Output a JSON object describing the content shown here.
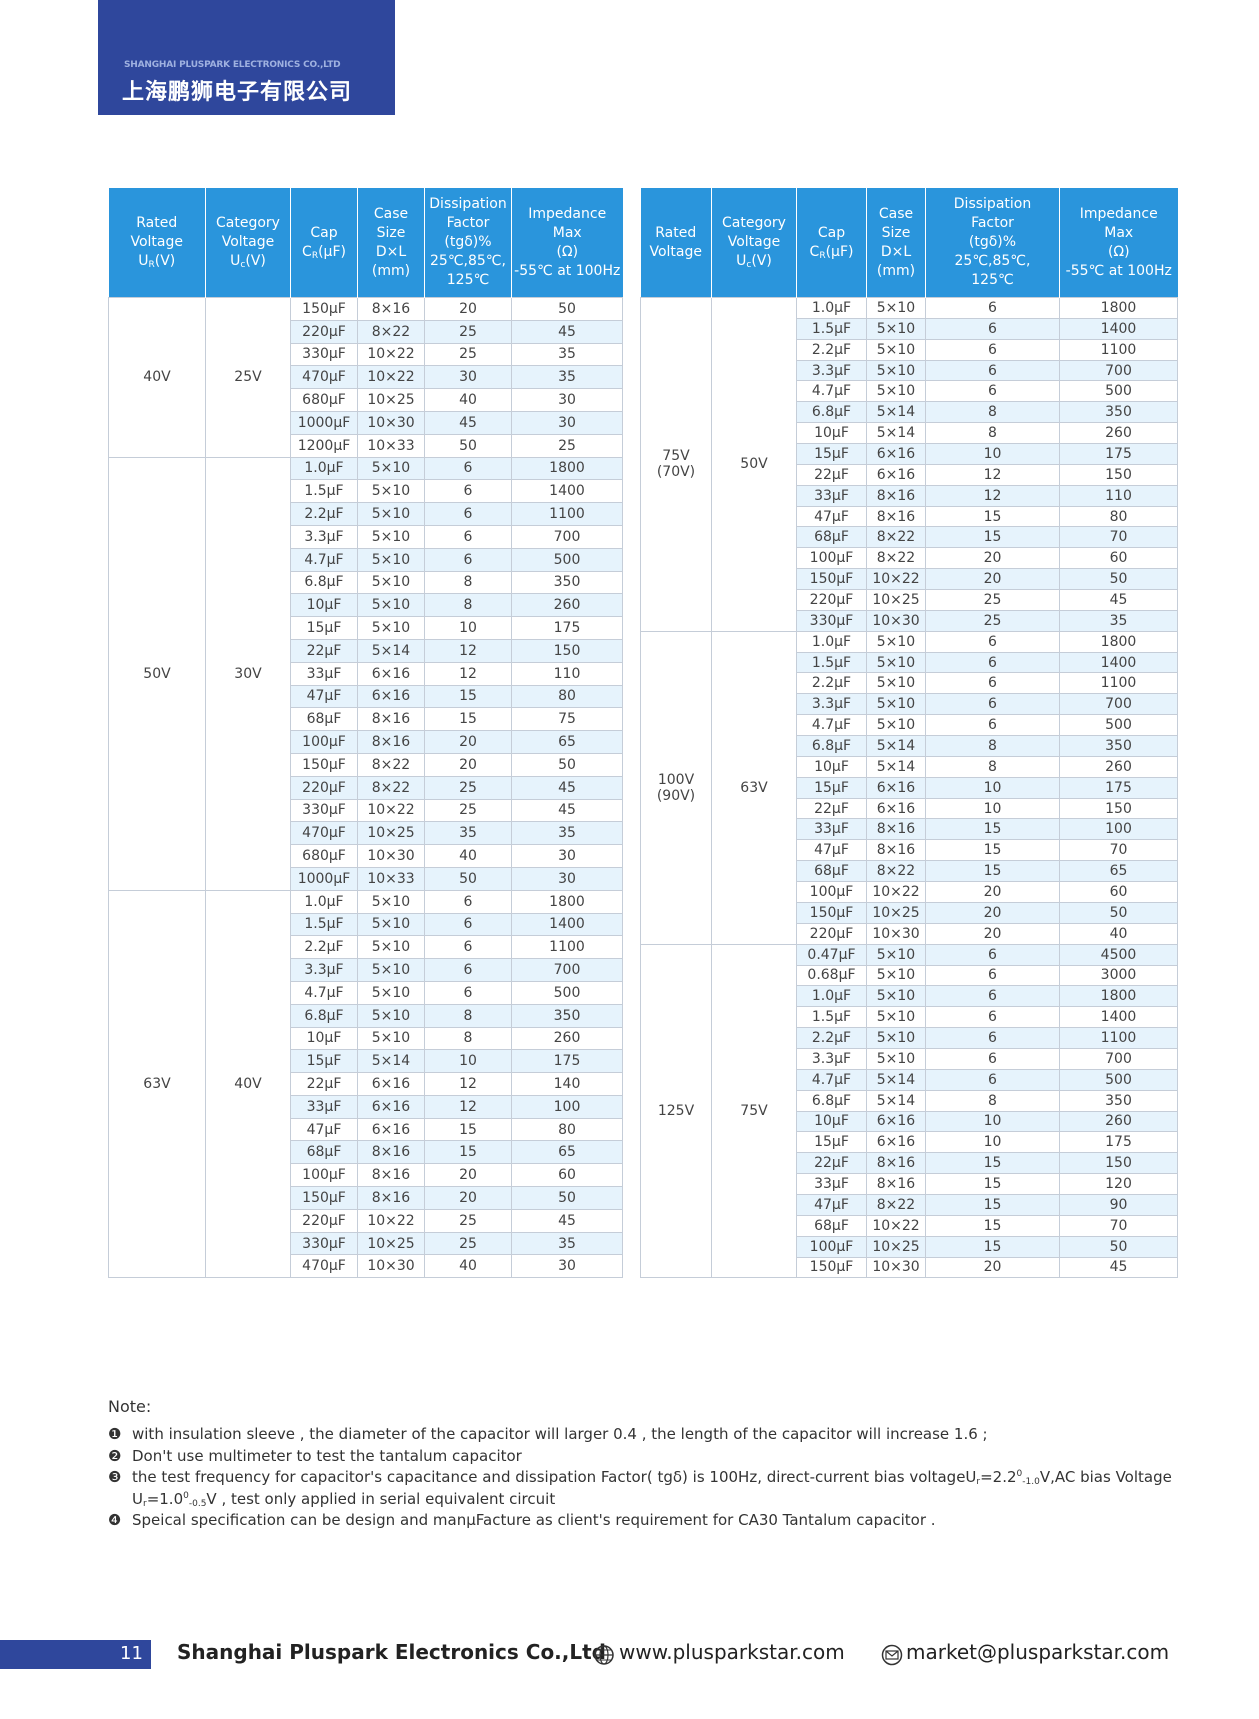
{
  "header": {
    "company_en": "SHANGHAI PLUSPARK ELECTRONICS CO.,LTD",
    "company_cn": "上海鹏狮电子有限公司"
  },
  "left_table": {
    "headers": [
      {
        "lines": [
          "Rated",
          "Voltage"
        ],
        "sym": "U",
        "sub": "R",
        "unit": "(V)"
      },
      {
        "lines": [
          "Category",
          "Voltage"
        ],
        "sym": "U",
        "sub": "c",
        "unit": "(V)"
      },
      {
        "lines": [
          "Cap"
        ],
        "sym": "C",
        "sub": "R",
        "unit": "(μF)"
      },
      {
        "lines": [
          "Case",
          "Size",
          "D×L",
          "(mm)"
        ]
      },
      {
        "lines": [
          "Dissipation",
          "Factor",
          "(tgδ)%",
          "25℃,85℃,",
          "125℃"
        ]
      },
      {
        "lines": [
          "Impedance",
          "Max",
          "(Ω)",
          "-55℃ at 100Hz"
        ]
      }
    ],
    "groups": [
      {
        "rated": [
          "40V"
        ],
        "category": "25V",
        "rows": [
          [
            "150μF",
            "8×16",
            20,
            50
          ],
          [
            "220μF",
            "8×22",
            25,
            45
          ],
          [
            "330μF",
            "10×22",
            25,
            35
          ],
          [
            "470μF",
            "10×22",
            30,
            35
          ],
          [
            "680μF",
            "10×25",
            40,
            30
          ],
          [
            "1000μF",
            "10×30",
            45,
            30
          ],
          [
            "1200μF",
            "10×33",
            50,
            25
          ]
        ]
      },
      {
        "rated": [
          "50V"
        ],
        "category": "30V",
        "rows": [
          [
            "1.0μF",
            "5×10",
            6,
            1800
          ],
          [
            "1.5μF",
            "5×10",
            6,
            1400
          ],
          [
            "2.2μF",
            "5×10",
            6,
            1100
          ],
          [
            "3.3μF",
            "5×10",
            6,
            700
          ],
          [
            "4.7μF",
            "5×10",
            6,
            500
          ],
          [
            "6.8μF",
            "5×10",
            8,
            350
          ],
          [
            "10μF",
            "5×10",
            8,
            260
          ],
          [
            "15μF",
            "5×10",
            10,
            175
          ],
          [
            "22μF",
            "5×14",
            12,
            150
          ],
          [
            "33μF",
            "6×16",
            12,
            110
          ],
          [
            "47μF",
            "6×16",
            15,
            80
          ],
          [
            "68μF",
            "8×16",
            15,
            75
          ],
          [
            "100μF",
            "8×16",
            20,
            65
          ],
          [
            "150μF",
            "8×22",
            20,
            50
          ],
          [
            "220μF",
            "8×22",
            25,
            45
          ],
          [
            "330μF",
            "10×22",
            25,
            45
          ],
          [
            "470μF",
            "10×25",
            35,
            35
          ],
          [
            "680μF",
            "10×30",
            40,
            30
          ],
          [
            "1000μF",
            "10×33",
            50,
            30
          ]
        ]
      },
      {
        "rated": [
          "63V"
        ],
        "category": "40V",
        "rows": [
          [
            "1.0μF",
            "5×10",
            6,
            1800
          ],
          [
            "1.5μF",
            "5×10",
            6,
            1400
          ],
          [
            "2.2μF",
            "5×10",
            6,
            1100
          ],
          [
            "3.3μF",
            "5×10",
            6,
            700
          ],
          [
            "4.7μF",
            "5×10",
            6,
            500
          ],
          [
            "6.8μF",
            "5×10",
            8,
            350
          ],
          [
            "10μF",
            "5×10",
            8,
            260
          ],
          [
            "15μF",
            "5×14",
            10,
            175
          ],
          [
            "22μF",
            "6×16",
            12,
            140
          ],
          [
            "33μF",
            "6×16",
            12,
            100
          ],
          [
            "47μF",
            "6×16",
            15,
            80
          ],
          [
            "68μF",
            "8×16",
            15,
            65
          ],
          [
            "100μF",
            "8×16",
            20,
            60
          ],
          [
            "150μF",
            "8×16",
            20,
            50
          ],
          [
            "220μF",
            "10×22",
            25,
            45
          ],
          [
            "330μF",
            "10×25",
            25,
            35
          ],
          [
            "470μF",
            "10×30",
            40,
            30
          ]
        ]
      }
    ]
  },
  "right_table": {
    "headers": [
      {
        "lines": [
          "Rated",
          "Voltage"
        ]
      },
      {
        "lines": [
          "Category",
          "Voltage"
        ],
        "sym": "U",
        "sub": "c",
        "unit": "(V)"
      },
      {
        "lines": [
          "Cap"
        ],
        "sym": "C",
        "sub": "R",
        "unit": "(μF)"
      },
      {
        "lines": [
          "Case",
          "Size",
          "D×L",
          "(mm)"
        ]
      },
      {
        "lines": [
          "Dissipation",
          "Factor",
          "(tgδ)%",
          "25℃,85℃,",
          "125℃"
        ]
      },
      {
        "lines": [
          "Impedance",
          "Max",
          "(Ω)",
          "-55℃ at 100Hz"
        ]
      }
    ],
    "groups": [
      {
        "rated": [
          "75V",
          "(70V)"
        ],
        "category": "50V",
        "rows": [
          [
            "1.0μF",
            "5×10",
            6,
            1800
          ],
          [
            "1.5μF",
            "5×10",
            6,
            1400
          ],
          [
            "2.2μF",
            "5×10",
            6,
            1100
          ],
          [
            "3.3μF",
            "5×10",
            6,
            700
          ],
          [
            "4.7μF",
            "5×10",
            6,
            500
          ],
          [
            "6.8μF",
            "5×14",
            8,
            350
          ],
          [
            "10μF",
            "5×14",
            8,
            260
          ],
          [
            "15μF",
            "6×16",
            10,
            175
          ],
          [
            "22μF",
            "6×16",
            12,
            150
          ],
          [
            "33μF",
            "8×16",
            12,
            110
          ],
          [
            "47μF",
            "8×16",
            15,
            80
          ],
          [
            "68μF",
            "8×22",
            15,
            70
          ],
          [
            "100μF",
            "8×22",
            20,
            60
          ],
          [
            "150μF",
            "10×22",
            20,
            50
          ],
          [
            "220μF",
            "10×25",
            25,
            45
          ],
          [
            "330μF",
            "10×30",
            25,
            35
          ]
        ]
      },
      {
        "rated": [
          "100V",
          "(90V)"
        ],
        "category": "63V",
        "rows": [
          [
            "1.0μF",
            "5×10",
            6,
            1800
          ],
          [
            "1.5μF",
            "5×10",
            6,
            1400
          ],
          [
            "2.2μF",
            "5×10",
            6,
            1100
          ],
          [
            "3.3μF",
            "5×10",
            6,
            700
          ],
          [
            "4.7μF",
            "5×10",
            6,
            500
          ],
          [
            "6.8μF",
            "5×14",
            8,
            350
          ],
          [
            "10μF",
            "5×14",
            8,
            260
          ],
          [
            "15μF",
            "6×16",
            10,
            175
          ],
          [
            "22μF",
            "6×16",
            10,
            150
          ],
          [
            "33μF",
            "8×16",
            15,
            100
          ],
          [
            "47μF",
            "8×16",
            15,
            70
          ],
          [
            "68μF",
            "8×22",
            15,
            65
          ],
          [
            "100μF",
            "10×22",
            20,
            60
          ],
          [
            "150μF",
            "10×25",
            20,
            50
          ],
          [
            "220μF",
            "10×30",
            20,
            40
          ]
        ]
      },
      {
        "rated": [
          "125V"
        ],
        "category": "75V",
        "rows": [
          [
            "0.47μF",
            "5×10",
            6,
            4500
          ],
          [
            "0.68μF",
            "5×10",
            6,
            3000
          ],
          [
            "1.0μF",
            "5×10",
            6,
            1800
          ],
          [
            "1.5μF",
            "5×10",
            6,
            1400
          ],
          [
            "2.2μF",
            "5×10",
            6,
            1100
          ],
          [
            "3.3μF",
            "5×10",
            6,
            700
          ],
          [
            "4.7μF",
            "5×14",
            6,
            500
          ],
          [
            "6.8μF",
            "5×14",
            8,
            350
          ],
          [
            "10μF",
            "6×16",
            10,
            260
          ],
          [
            "15μF",
            "6×16",
            10,
            175
          ],
          [
            "22μF",
            "8×16",
            15,
            150
          ],
          [
            "33μF",
            "8×16",
            15,
            120
          ],
          [
            "47μF",
            "8×22",
            15,
            90
          ],
          [
            "68μF",
            "10×22",
            15,
            70
          ],
          [
            "100μF",
            "10×25",
            15,
            50
          ],
          [
            "150μF",
            "10×30",
            20,
            45
          ]
        ]
      }
    ]
  },
  "notes": {
    "title": "Note:",
    "items": [
      {
        "bullet": "❶",
        "segments": [
          {
            "t": "with insulation sleeve , the diameter of the capacitor will larger 0.4 , the length of the capacitor will increase 1.6 ;"
          }
        ]
      },
      {
        "bullet": "❷",
        "segments": [
          {
            "t": "Don't use  multimeter to test the tantalum capacitor"
          }
        ]
      },
      {
        "bullet": "❸",
        "segments": [
          {
            "t": "the test frequency for capacitor's capacitance and dissipation Factor( tgδ) is 100Hz, direct-current bias voltageU"
          },
          {
            "t": "r",
            "s": "sub"
          },
          {
            "t": "=2.2"
          },
          {
            "t": "0",
            "s": "sup"
          },
          {
            "t": "-1.0",
            "s": "sub"
          },
          {
            "t": "V,AC bias Voltage"
          },
          {
            "br": true,
            "t": "U"
          },
          {
            "t": "r",
            "s": "sub"
          },
          {
            "t": "=1.0"
          },
          {
            "t": "0",
            "s": "sup"
          },
          {
            "t": "-0.5",
            "s": "sub"
          },
          {
            "t": "V  , test only applied in serial equivalent circuit"
          }
        ]
      },
      {
        "bullet": "❹",
        "segments": [
          {
            "t": "Speical specification can be design and manμFacture as client's requirement for CA30 Tantalum capacitor ."
          }
        ]
      }
    ]
  },
  "footer": {
    "page": "11",
    "company": "Shanghai Pluspark Electronics Co.,Ltd",
    "website": "www.plusparkstar.com",
    "email": "market@plusparkstar.com"
  }
}
